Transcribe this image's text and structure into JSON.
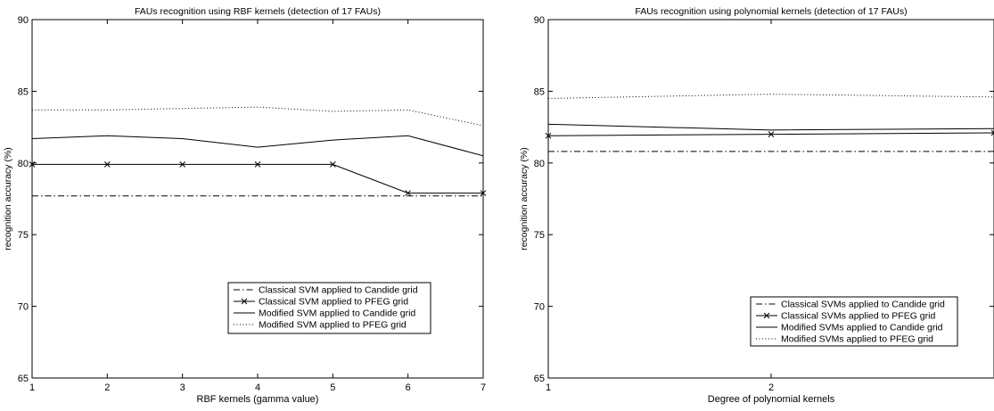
{
  "chart_data": [
    {
      "type": "line",
      "title": "FAUs recognition using RBF kernels (detection of 17 FAUs)",
      "xlabel": "RBF kernels (gamma value)",
      "ylabel": "recognition accuracy (%)",
      "xlim": [
        1,
        7
      ],
      "ylim": [
        65,
        90
      ],
      "xticks": [
        "1",
        "2",
        "3",
        "4",
        "5",
        "6",
        "7"
      ],
      "yticks": [
        "65",
        "70",
        "75",
        "80",
        "85",
        "90"
      ],
      "x": [
        1,
        2,
        3,
        4,
        5,
        6,
        7
      ],
      "grid": false,
      "legend_position": "lower-right",
      "series": [
        {
          "name": "Classical SVM applied to Candide grid",
          "style": "dashdot",
          "marker": "none",
          "values": [
            77.7,
            77.7,
            77.7,
            77.7,
            77.7,
            77.7,
            77.7
          ]
        },
        {
          "name": "Classical SVM applied to PFEG grid",
          "style": "solid",
          "marker": "x",
          "values": [
            79.9,
            79.9,
            79.9,
            79.9,
            79.9,
            77.9,
            77.9
          ]
        },
        {
          "name": "Modified SVM applied to Candide grid",
          "style": "solid",
          "marker": "none",
          "values": [
            81.7,
            81.9,
            81.7,
            81.1,
            81.6,
            81.9,
            80.5
          ]
        },
        {
          "name": "Modified SVM applied to PFEG grid",
          "style": "dotted",
          "marker": "none",
          "values": [
            83.7,
            83.7,
            83.8,
            83.9,
            83.6,
            83.7,
            82.6
          ]
        }
      ]
    },
    {
      "type": "line",
      "title": "FAUs recognition using polynomial kernels (detection of 17 FAUs)",
      "xlabel": "Degree of polynomial kernels",
      "ylabel": "recognition accuracy (%)",
      "xlim": [
        1,
        3
      ],
      "ylim": [
        65,
        90
      ],
      "xticks": [
        "1",
        "2"
      ],
      "yticks": [
        "65",
        "70",
        "75",
        "80",
        "85",
        "90"
      ],
      "x": [
        1,
        2,
        3
      ],
      "grid": false,
      "legend_position": "lower-right",
      "series": [
        {
          "name": "Classical SVMs applied to Candide grid",
          "style": "dashdot",
          "marker": "none",
          "values": [
            80.8,
            80.8,
            80.8
          ]
        },
        {
          "name": "Classical SVMs applied to PFEG grid",
          "style": "solid",
          "marker": "x",
          "values": [
            81.9,
            82.0,
            82.1
          ]
        },
        {
          "name": "Modified SVMs applied to Candide grid",
          "style": "solid",
          "marker": "none",
          "values": [
            82.7,
            82.3,
            82.4
          ]
        },
        {
          "name": "Modified SVMs applied to PFEG grid",
          "style": "dotted",
          "marker": "none",
          "values": [
            84.5,
            84.8,
            84.6
          ]
        }
      ]
    }
  ]
}
